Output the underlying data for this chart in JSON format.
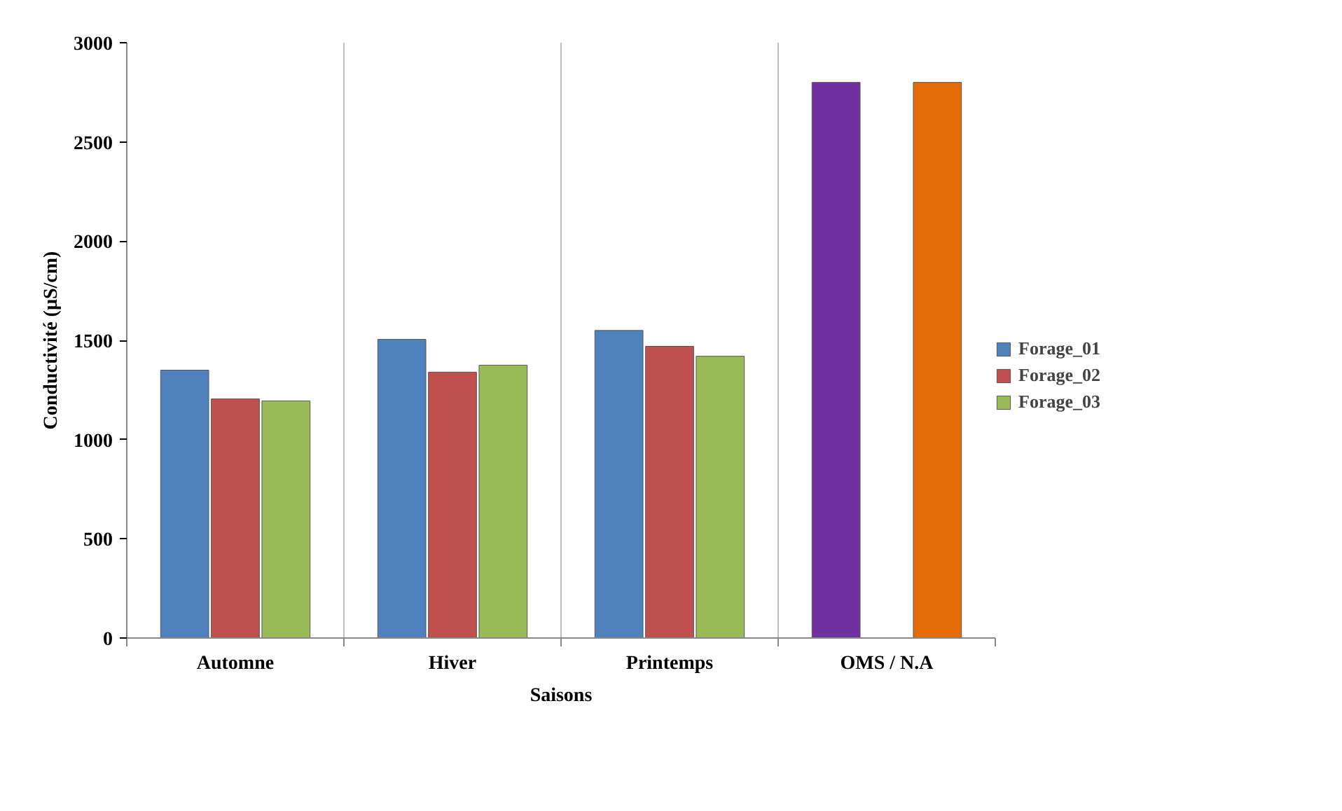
{
  "chart_data": {
    "type": "bar",
    "xlabel": "Saisons",
    "ylabel": "Conductivité (µS/cm)",
    "categories": [
      "Automne",
      "Hiver",
      "Printemps",
      "OMS / N.A"
    ],
    "series": [
      {
        "name": "Forage_01",
        "color": "#4f81bd",
        "colors": [
          "#4f81bd",
          "#4f81bd",
          "#4f81bd",
          "#7030a0"
        ],
        "values": [
          1350,
          1505,
          1550,
          2800
        ]
      },
      {
        "name": "Forage_02",
        "color": "#c0504d",
        "values": [
          1205,
          1340,
          1470,
          null
        ]
      },
      {
        "name": "Forage_03",
        "color": "#9bbb59",
        "colors": [
          "#9bbb59",
          "#9bbb59",
          "#9bbb59",
          "#e36c09"
        ],
        "values": [
          1195,
          1375,
          1420,
          2800
        ]
      }
    ],
    "ylim": [
      0,
      3000
    ],
    "yticks": [
      0,
      500,
      1000,
      1500,
      2000,
      2500,
      3000
    ],
    "grid": "x",
    "legend": "right"
  }
}
